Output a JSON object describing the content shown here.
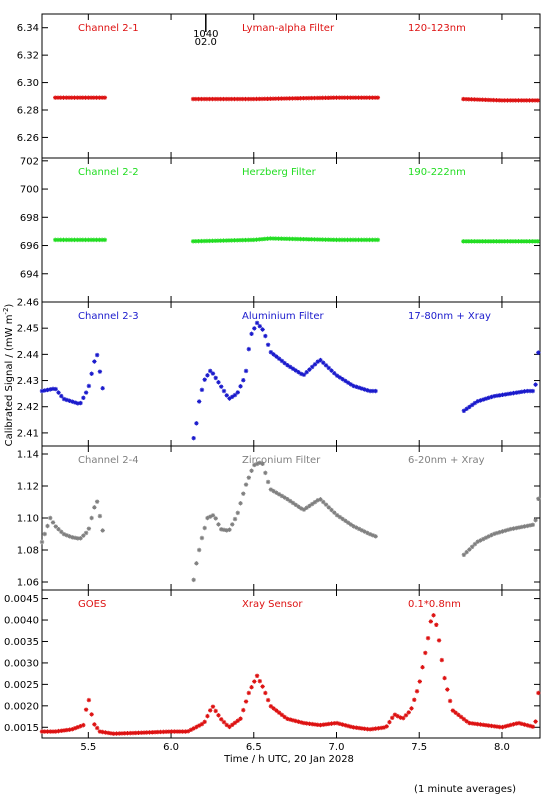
{
  "figure": {
    "ylabel": "Calibrated Signal / (mW m",
    "ylabel_sup": "-2",
    "ylabel_tail": ")",
    "xlabel": "Time / h UTC, 20 Jan 2028",
    "footnote": "(1 minute averages)",
    "marker_label_top": "1040",
    "marker_label_bottom": "02.0",
    "marker_time": 6.21,
    "x_ticks": [
      "5.5",
      "6.0",
      "6.5",
      "7.0",
      "7.5",
      "8.0"
    ],
    "x_tick_values": [
      5.5,
      6.0,
      6.5,
      7.0,
      7.5,
      8.0
    ],
    "xlim": [
      5.22,
      8.23
    ]
  },
  "chart_data": [
    {
      "type": "scatter",
      "color": "#dd1111",
      "labels": [
        "Channel 2-1",
        "Lyman-alpha Filter",
        "120-123nm"
      ],
      "ylim": [
        6.245,
        6.35
      ],
      "y_ticks": [
        "6.26",
        "6.28",
        "6.30",
        "6.32",
        "6.34"
      ],
      "y_tick_values": [
        6.26,
        6.28,
        6.3,
        6.32,
        6.34
      ],
      "x": [
        5.3,
        5.6,
        6.13,
        6.5,
        7.0,
        7.25,
        7.76,
        8.0,
        8.23
      ],
      "y": [
        6.289,
        6.289,
        6.288,
        6.288,
        6.289,
        6.289,
        6.288,
        6.287,
        6.287
      ],
      "gaps": [
        [
          5.6,
          6.13
        ],
        [
          7.25,
          7.76
        ]
      ]
    },
    {
      "type": "scatter",
      "color": "#22dd22",
      "labels": [
        "Channel 2-2",
        "Herzberg Filter",
        "190-222nm"
      ],
      "ylim": [
        692.0,
        702.2
      ],
      "y_ticks": [
        "694",
        "696",
        "698",
        "700",
        "702"
      ],
      "y_tick_values": [
        694,
        696,
        698,
        700,
        702
      ],
      "x": [
        5.3,
        5.6,
        6.13,
        6.5,
        6.6,
        7.0,
        7.25,
        7.76,
        8.23
      ],
      "y": [
        696.4,
        696.4,
        696.3,
        696.4,
        696.5,
        696.4,
        696.4,
        696.3,
        696.3
      ],
      "gaps": [
        [
          5.6,
          6.13
        ],
        [
          7.25,
          7.76
        ]
      ]
    },
    {
      "type": "scatter",
      "color": "#1a1acc",
      "labels": [
        "Channel 2-3",
        "Aluminium Filter",
        "17-80nm + Xray"
      ],
      "ylim": [
        2.405,
        2.46
      ],
      "y_ticks": [
        "2.41",
        "2.42",
        "2.43",
        "2.44",
        "2.45",
        "2.46"
      ],
      "y_tick_values": [
        2.41,
        2.42,
        2.43,
        2.44,
        2.45,
        2.46
      ],
      "x": [
        5.22,
        5.3,
        5.35,
        5.4,
        5.45,
        5.5,
        5.55,
        5.6,
        6.13,
        6.15,
        6.17,
        6.2,
        6.24,
        6.3,
        6.35,
        6.4,
        6.45,
        6.48,
        6.52,
        6.56,
        6.6,
        6.7,
        6.8,
        6.9,
        7.0,
        7.1,
        7.2,
        7.25,
        7.76,
        7.85,
        7.95,
        8.05,
        8.15,
        8.2,
        8.23
      ],
      "y": [
        2.426,
        2.427,
        2.423,
        2.422,
        2.421,
        2.427,
        2.441,
        2.422,
        2.406,
        2.412,
        2.422,
        2.43,
        2.434,
        2.428,
        2.423,
        2.425,
        2.432,
        2.447,
        2.452,
        2.449,
        2.441,
        2.436,
        2.432,
        2.438,
        2.432,
        2.428,
        2.426,
        2.426,
        2.418,
        2.422,
        2.424,
        2.425,
        2.426,
        2.426,
        2.448
      ],
      "gaps": [
        [
          5.6,
          6.13
        ],
        [
          7.25,
          7.76
        ]
      ]
    },
    {
      "type": "scatter",
      "color": "#808080",
      "labels": [
        "Channel 2-4",
        "Zirconium Filter",
        "6-20nm + Xray"
      ],
      "ylim": [
        1.055,
        1.145
      ],
      "y_ticks": [
        "1.06",
        "1.08",
        "1.10",
        "1.12",
        "1.14"
      ],
      "y_tick_values": [
        1.06,
        1.08,
        1.1,
        1.12,
        1.14
      ],
      "x": [
        5.22,
        5.27,
        5.3,
        5.35,
        5.4,
        5.45,
        5.5,
        5.55,
        5.6,
        6.13,
        6.15,
        6.18,
        6.22,
        6.26,
        6.3,
        6.35,
        6.4,
        6.45,
        6.5,
        6.55,
        6.6,
        6.7,
        6.8,
        6.9,
        7.0,
        7.1,
        7.2,
        7.25,
        7.76,
        7.85,
        7.95,
        8.05,
        8.15,
        8.2,
        8.23
      ],
      "y": [
        1.085,
        1.1,
        1.095,
        1.09,
        1.088,
        1.087,
        1.092,
        1.112,
        1.085,
        1.057,
        1.07,
        1.085,
        1.1,
        1.102,
        1.093,
        1.092,
        1.102,
        1.12,
        1.133,
        1.135,
        1.118,
        1.112,
        1.105,
        1.112,
        1.102,
        1.095,
        1.09,
        1.088,
        1.076,
        1.085,
        1.09,
        1.093,
        1.095,
        1.096,
        1.12
      ],
      "gaps": [
        [
          5.6,
          6.13
        ],
        [
          7.25,
          7.76
        ]
      ]
    },
    {
      "type": "scatter",
      "color": "#dd1111",
      "labels": [
        "GOES",
        "Xray Sensor",
        "0.1*0.8nm"
      ],
      "ylim": [
        0.00125,
        0.0047
      ],
      "y_ticks": [
        "0.0015",
        "0.0020",
        "0.0025",
        "0.0030",
        "0.0035",
        "0.0040",
        "0.0045"
      ],
      "y_tick_values": [
        0.0015,
        0.002,
        0.0025,
        0.003,
        0.0035,
        0.004,
        0.0045
      ],
      "x": [
        5.22,
        5.3,
        5.4,
        5.47,
        5.5,
        5.53,
        5.57,
        5.65,
        5.8,
        6.0,
        6.1,
        6.2,
        6.25,
        6.3,
        6.35,
        6.42,
        6.47,
        6.52,
        6.56,
        6.6,
        6.7,
        6.8,
        6.9,
        7.0,
        7.1,
        7.2,
        7.3,
        7.35,
        7.4,
        7.45,
        7.5,
        7.55,
        7.58,
        7.61,
        7.65,
        7.7,
        7.8,
        7.9,
        8.0,
        8.1,
        8.2,
        8.23
      ],
      "y": [
        0.0014,
        0.0014,
        0.00145,
        0.00155,
        0.0022,
        0.0016,
        0.0014,
        0.00135,
        0.00137,
        0.0014,
        0.0014,
        0.0016,
        0.002,
        0.0017,
        0.0015,
        0.0017,
        0.0023,
        0.0027,
        0.0024,
        0.002,
        0.0017,
        0.0016,
        0.00155,
        0.0016,
        0.0015,
        0.00145,
        0.0015,
        0.0018,
        0.0017,
        0.0019,
        0.0025,
        0.0035,
        0.0042,
        0.0038,
        0.0027,
        0.0019,
        0.0016,
        0.00155,
        0.0015,
        0.0016,
        0.0015,
        0.0027
      ],
      "gaps": []
    }
  ]
}
